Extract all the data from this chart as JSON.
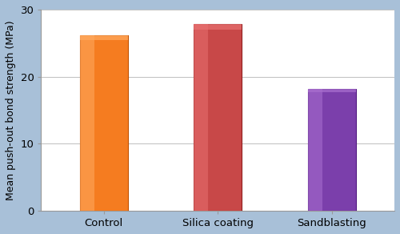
{
  "categories": [
    "Control",
    "Silica coating",
    "Sandblasting"
  ],
  "values": [
    26.2,
    27.8,
    18.2
  ],
  "bar_colors": [
    "#F57C20",
    "#C84848",
    "#7B3FAB"
  ],
  "bar_highlight_colors": [
    "#FFAA60",
    "#E87070",
    "#AA70D0"
  ],
  "bar_edge_colors": [
    "#C05000",
    "#902020",
    "#501880"
  ],
  "ylabel": "Mean push-out bond strength (MPa)",
  "ylim": [
    0,
    30
  ],
  "yticks": [
    0,
    10,
    20,
    30
  ],
  "outer_bg_color": "#A8C0D8",
  "inner_border_color": "#C8DCF0",
  "plot_bg_color": "#FFFFFF",
  "grid_color": "#C0C0C0",
  "bar_width": 0.42,
  "tick_fontsize": 9.5,
  "ylabel_fontsize": 9.0,
  "xlabel_fontsize": 9.5
}
